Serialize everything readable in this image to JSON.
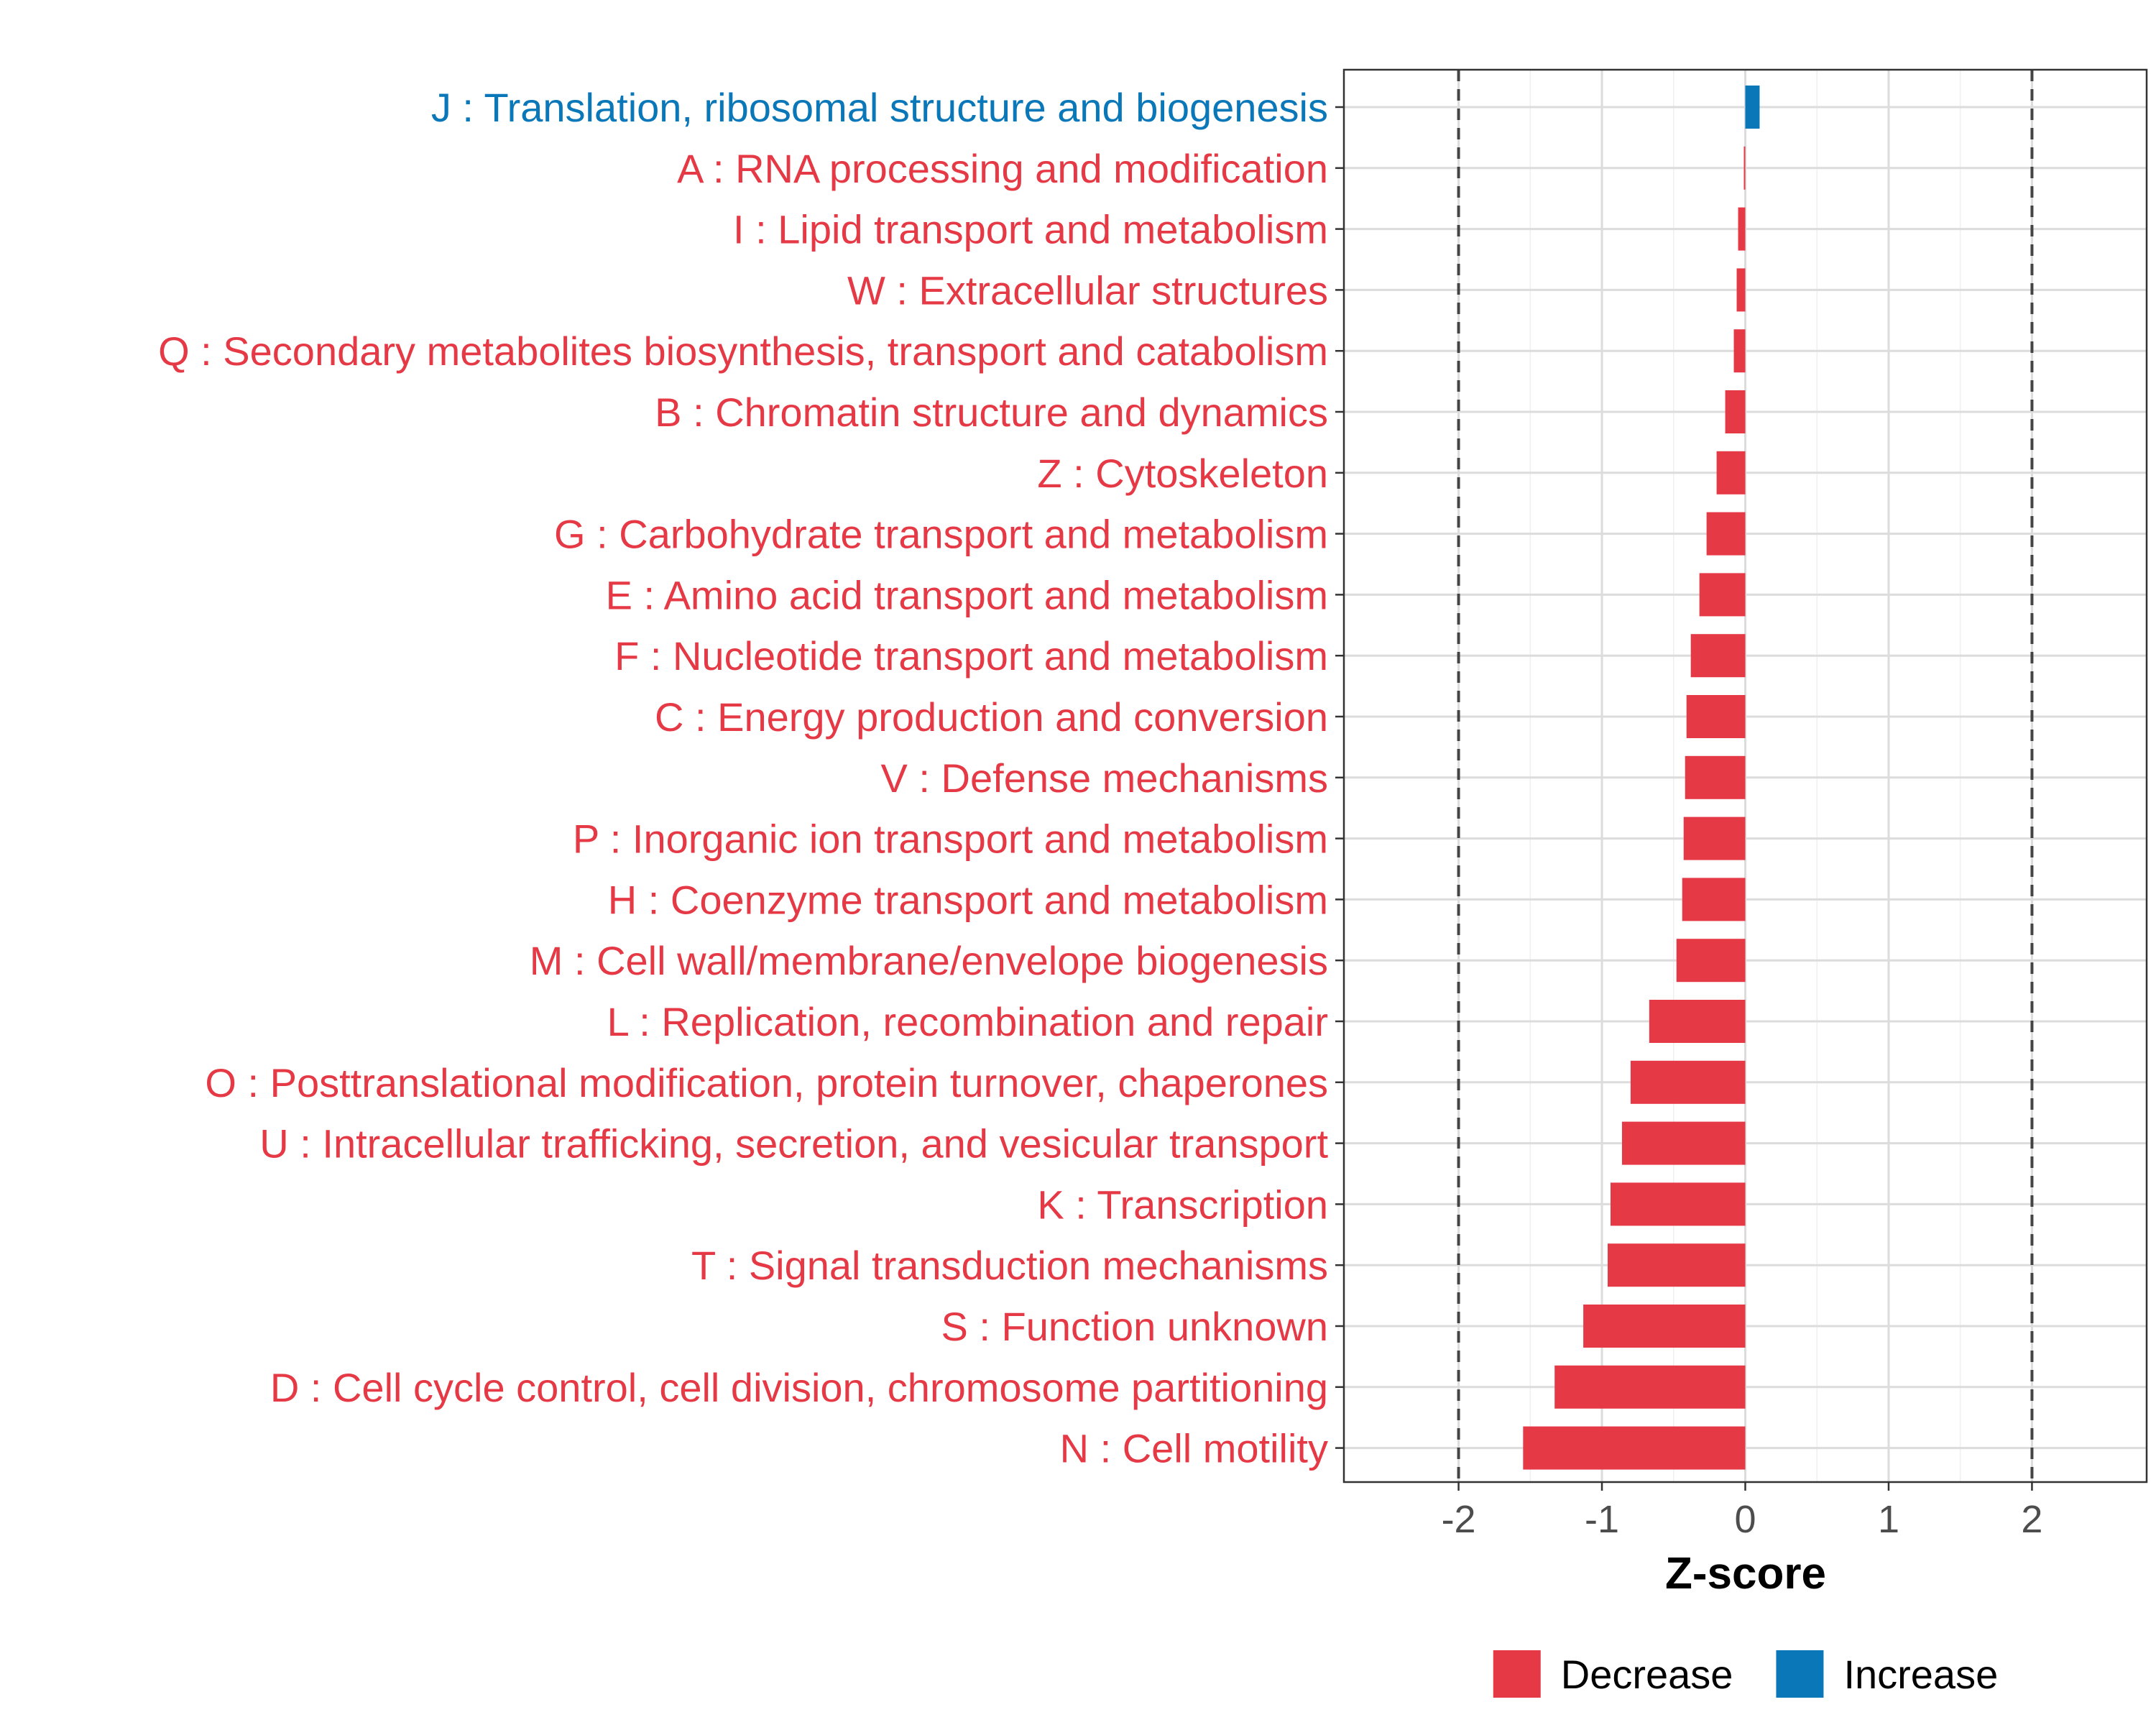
{
  "chart_data": {
    "type": "bar",
    "orientation": "horizontal",
    "title": "",
    "xlabel": "Z-score",
    "ylabel": "",
    "xlim": [
      -2.8,
      2.8
    ],
    "xticks": [
      -2,
      -1,
      0,
      1,
      2
    ],
    "xtick_labels": [
      "-2",
      "-1",
      "0",
      "1",
      "2"
    ],
    "reference_lines": [
      -2,
      2
    ],
    "grid": true,
    "legend_position": "bottom",
    "colors": {
      "Decrease": "#e63946",
      "Increase": "#0a77b8"
    },
    "legend": [
      {
        "label": "Decrease",
        "color": "#e63946"
      },
      {
        "label": "Increase",
        "color": "#0a77b8"
      }
    ],
    "categories": [
      "J : Translation, ribosomal structure and biogenesis",
      "A : RNA processing and modification",
      "I : Lipid transport and metabolism",
      "W : Extracellular structures",
      "Q : Secondary metabolites biosynthesis, transport and catabolism",
      "B : Chromatin structure and dynamics",
      "Z : Cytoskeleton",
      "G : Carbohydrate transport and metabolism",
      "E : Amino acid transport and metabolism",
      "F : Nucleotide transport and metabolism",
      "C : Energy production and conversion",
      "V : Defense mechanisms",
      "P : Inorganic ion transport and metabolism",
      "H : Coenzyme transport and metabolism",
      "M : Cell wall/membrane/envelope biogenesis",
      "L : Replication, recombination and repair",
      "O : Posttranslational modification, protein turnover, chaperones",
      "U : Intracellular trafficking, secretion, and vesicular transport",
      "K : Transcription",
      "T : Signal transduction mechanisms",
      "S : Function unknown",
      "D : Cell cycle control, cell division, chromosome partitioning",
      "N : Cell motility"
    ],
    "values": [
      0.1,
      -0.01,
      -0.05,
      -0.06,
      -0.08,
      -0.14,
      -0.2,
      -0.27,
      -0.32,
      -0.38,
      -0.41,
      -0.42,
      -0.43,
      -0.44,
      -0.48,
      -0.67,
      -0.8,
      -0.86,
      -0.94,
      -0.96,
      -1.13,
      -1.33,
      -1.55
    ],
    "direction": [
      "Increase",
      "Decrease",
      "Decrease",
      "Decrease",
      "Decrease",
      "Decrease",
      "Decrease",
      "Decrease",
      "Decrease",
      "Decrease",
      "Decrease",
      "Decrease",
      "Decrease",
      "Decrease",
      "Decrease",
      "Decrease",
      "Decrease",
      "Decrease",
      "Decrease",
      "Decrease",
      "Decrease",
      "Decrease",
      "Decrease"
    ]
  }
}
